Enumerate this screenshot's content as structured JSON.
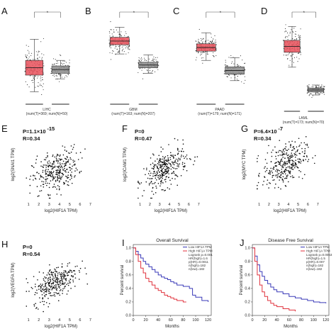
{
  "chart_data": [
    {
      "type": "box",
      "panel": "A",
      "xlabel": "LIHC",
      "sublabel": "(num(T)=369; num(N)=50)",
      "ylim": [
        0,
        10
      ],
      "series": [
        {
          "group": "T",
          "color": "#e8505b",
          "q1": 3.0,
          "median": 3.8,
          "q3": 4.6,
          "low": 1.2,
          "high": 6.9
        },
        {
          "group": "N",
          "color": "#8a8a8a",
          "q1": 3.2,
          "median": 3.6,
          "q3": 4.0,
          "low": 2.6,
          "high": 4.6
        }
      ],
      "significance": "*"
    },
    {
      "type": "box",
      "panel": "B",
      "xlabel": "GBM",
      "sublabel": "(num(T)=163; num(N)=207)",
      "ylim": [
        0,
        10
      ],
      "series": [
        {
          "group": "T",
          "color": "#e8505b",
          "q1": 6.3,
          "median": 6.7,
          "q3": 7.1,
          "low": 5.3,
          "high": 8.2
        },
        {
          "group": "N",
          "color": "#8a8a8a",
          "q1": 3.8,
          "median": 4.1,
          "q3": 4.4,
          "low": 3.2,
          "high": 5.2
        }
      ],
      "significance": "*"
    },
    {
      "type": "box",
      "panel": "C",
      "xlabel": "PAAD",
      "sublabel": "(num(T)=179; num(N)=171)",
      "ylim": [
        0,
        10
      ],
      "series": [
        {
          "group": "T",
          "color": "#e8505b",
          "q1": 5.6,
          "median": 6.0,
          "q3": 6.4,
          "low": 4.6,
          "high": 7.6
        },
        {
          "group": "N",
          "color": "#8a8a8a",
          "q1": 3.1,
          "median": 3.5,
          "q3": 3.9,
          "low": 2.4,
          "high": 4.9
        }
      ],
      "significance": "*"
    },
    {
      "type": "box",
      "panel": "D",
      "xlabel": "LAML",
      "sublabel": "(num(T)=173; num(N)=70)",
      "ylim": [
        0,
        10
      ],
      "series": [
        {
          "group": "T",
          "color": "#e8505b",
          "q1": 5.8,
          "median": 6.4,
          "q3": 7.0,
          "low": 4.3,
          "high": 8.4
        },
        {
          "group": "N",
          "color": "#8a8a8a",
          "q1": 1.8,
          "median": 2.0,
          "q3": 2.2,
          "low": 1.5,
          "high": 2.5
        }
      ],
      "significance": "*"
    },
    {
      "type": "scatter",
      "panel": "E",
      "stat_p": "P=1.1×10",
      "stat_p_exp": "-15",
      "stat_r": "R=0.34",
      "xlabel": "log2(HIF1A TPM)",
      "ylabel": "log2(SNAI1 TPM)",
      "xticks": [
        1,
        2,
        3,
        4,
        5,
        6,
        7
      ],
      "xlim": [
        0.3,
        8
      ],
      "ylim": [
        0,
        8
      ],
      "slope": 0.42,
      "intercept": 1.7,
      "spread": 1.1
    },
    {
      "type": "scatter",
      "panel": "F",
      "stat_p": "P=0",
      "stat_p_exp": "",
      "stat_r": "R=0.47",
      "xlabel": "log2(HIF1A TPM)",
      "ylabel": "log2(ICAM1 TPM)",
      "xticks": [
        1,
        2,
        3,
        4,
        5,
        6,
        7
      ],
      "xlim": [
        0.3,
        8
      ],
      "ylim": [
        0,
        8
      ],
      "slope": 0.55,
      "intercept": 1.5,
      "spread": 1.0
    },
    {
      "type": "scatter",
      "panel": "G",
      "stat_p": "P=6.4×10",
      "stat_p_exp": "-7",
      "stat_r": "R=0.34",
      "xlabel": "log2(HIF1A TPM)",
      "ylabel": "log2(MYC TPM)",
      "xticks": [
        1,
        2,
        3,
        4,
        5,
        6,
        7
      ],
      "xlim": [
        0.3,
        8
      ],
      "ylim": [
        0,
        8
      ],
      "slope": 0.4,
      "intercept": 2.6,
      "spread": 1.1
    },
    {
      "type": "scatter",
      "panel": "H",
      "stat_p": "P=0",
      "stat_p_exp": "",
      "stat_r": "R=0.54",
      "xlabel": "log2(HIF1A TPM)",
      "ylabel": "log2(VEGFA TPM)",
      "xticks": [
        1,
        2,
        3,
        4,
        5,
        6,
        7
      ],
      "xlim": [
        0.3,
        8
      ],
      "ylim": [
        0,
        8
      ],
      "slope": 0.55,
      "intercept": 1.8,
      "spread": 0.9
    },
    {
      "type": "line",
      "panel": "I",
      "title": "Overall Survival",
      "xlabel": "Months",
      "ylabel": "Percent survival",
      "xticks": [
        0,
        20,
        40,
        60,
        80,
        100,
        120
      ],
      "yticks": [
        0.0,
        0.2,
        0.4,
        0.6,
        0.8,
        1.0
      ],
      "xlim": [
        0,
        125
      ],
      "ylim": [
        0,
        1.05
      ],
      "legend": [
        "Low HIF1A TPM",
        "High HIF1A TPM"
      ],
      "stats": [
        "Logrank p=0.001",
        "HR(high)=1.6",
        "p(HR)=0.0011",
        "n(high)=182",
        "n(low)=182"
      ],
      "series": [
        {
          "name": "Low HIF1A TPM",
          "color": "#3a3ab8",
          "x": [
            0,
            4,
            8,
            12,
            16,
            20,
            25,
            30,
            35,
            40,
            45,
            50,
            55,
            60,
            65,
            70,
            80,
            90,
            95,
            100,
            110,
            120
          ],
          "y": [
            1.0,
            0.95,
            0.9,
            0.85,
            0.8,
            0.76,
            0.72,
            0.68,
            0.64,
            0.6,
            0.57,
            0.55,
            0.53,
            0.5,
            0.48,
            0.45,
            0.43,
            0.4,
            0.3,
            0.27,
            0.22,
            0.2
          ]
        },
        {
          "name": "High HIF1A TPM",
          "color": "#e0323c",
          "x": [
            0,
            4,
            8,
            12,
            16,
            20,
            25,
            30,
            35,
            40,
            45,
            50,
            55,
            60,
            65,
            70,
            80,
            85
          ],
          "y": [
            1.0,
            0.9,
            0.8,
            0.7,
            0.63,
            0.55,
            0.5,
            0.45,
            0.4,
            0.37,
            0.34,
            0.3,
            0.28,
            0.26,
            0.24,
            0.22,
            0.2,
            0.2
          ]
        }
      ]
    },
    {
      "type": "line",
      "panel": "J",
      "title": "Disease Free Survival",
      "xlabel": "Months",
      "ylabel": "Percent survival",
      "xticks": [
        0,
        20,
        40,
        60,
        80,
        100,
        120
      ],
      "yticks": [
        0.0,
        0.2,
        0.4,
        0.6,
        0.8,
        1.0
      ],
      "xlim": [
        0,
        125
      ],
      "ylim": [
        0,
        1.05
      ],
      "legend": [
        "Low HIF1A TPM",
        "High HIF1A TPM"
      ],
      "stats": [
        "Logrank p=0.0063",
        "HR(high)=1.5",
        "p(HR)=0.007",
        "n(high)=182",
        "n(low)=182"
      ],
      "series": [
        {
          "name": "Low HIF1A TPM",
          "color": "#3a3ab8",
          "x": [
            0,
            4,
            8,
            12,
            16,
            20,
            25,
            30,
            35,
            40,
            50,
            60,
            70,
            80,
            90,
            100,
            110,
            120
          ],
          "y": [
            1.0,
            0.88,
            0.75,
            0.65,
            0.58,
            0.52,
            0.47,
            0.42,
            0.38,
            0.35,
            0.32,
            0.28,
            0.26,
            0.24,
            0.22,
            0.2,
            0.19,
            0.18
          ]
        },
        {
          "name": "High HIF1A TPM",
          "color": "#e0323c",
          "x": [
            0,
            4,
            8,
            12,
            16,
            20,
            25,
            30,
            35,
            40,
            50,
            60,
            70
          ],
          "y": [
            1.0,
            0.8,
            0.6,
            0.45,
            0.35,
            0.28,
            0.22,
            0.18,
            0.15,
            0.13,
            0.1,
            0.08,
            0.06
          ]
        }
      ]
    }
  ]
}
